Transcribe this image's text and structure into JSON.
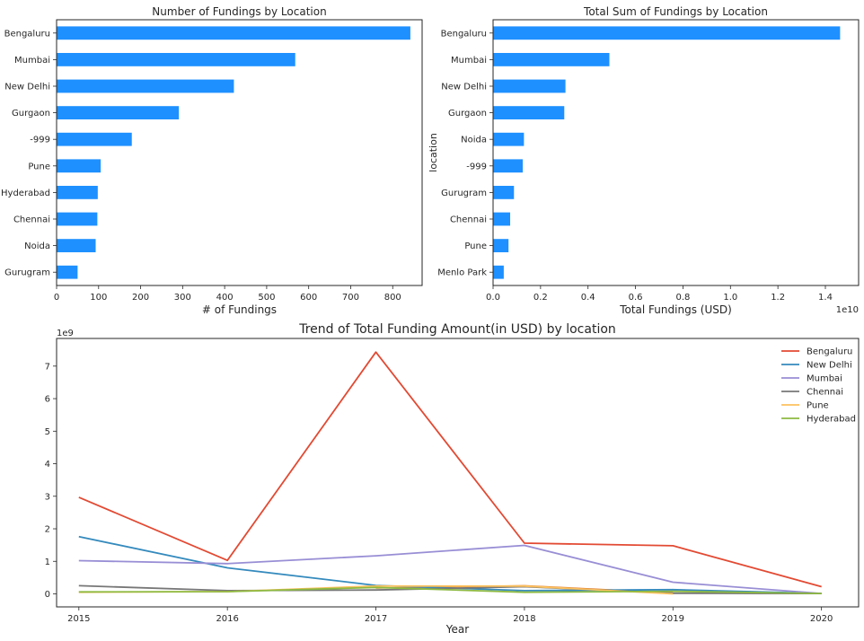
{
  "chart_data": [
    {
      "type": "bar",
      "orientation": "horizontal",
      "title": "Number of Fundings by Location",
      "xlabel": "# of Fundings",
      "ylabel": "",
      "xlim": [
        0,
        870
      ],
      "xticks": [
        0,
        100,
        200,
        300,
        400,
        500,
        600,
        700,
        800
      ],
      "categories": [
        "Bengaluru",
        "Mumbai",
        "New Delhi",
        "Gurgaon",
        "-999",
        "Pune",
        "Hyderabad",
        "Chennai",
        "Noida",
        "Gurugram"
      ],
      "values": [
        842,
        568,
        422,
        291,
        179,
        105,
        98,
        97,
        93,
        50
      ],
      "color": "#1e90ff"
    },
    {
      "type": "bar",
      "orientation": "horizontal",
      "title": "Total Sum of Fundings by Location",
      "xlabel": "Total Fundings (USD)",
      "ylabel": "location",
      "xlim": [
        0,
        1.54
      ],
      "xticks": [
        0.0,
        0.2,
        0.4,
        0.6,
        0.8,
        1.0,
        1.2,
        1.4
      ],
      "xtick_labels": [
        "0.0",
        "0.2",
        "0.4",
        "0.6",
        "0.8",
        "1.0",
        "1.2",
        "1.4"
      ],
      "scale_label": "1e10",
      "categories": [
        "Bengaluru",
        "Mumbai",
        "New Delhi",
        "Gurgaon",
        "Noida",
        "-999",
        "Gurugram",
        "Chennai",
        "Pune",
        "Menlo Park"
      ],
      "values": [
        1.462,
        0.49,
        0.305,
        0.3,
        0.13,
        0.125,
        0.088,
        0.072,
        0.065,
        0.045
      ],
      "color": "#1e90ff"
    },
    {
      "type": "line",
      "title": "Trend of Total Funding Amount(in USD) by location",
      "xlabel": "Year",
      "ylabel": "",
      "scale_label": "1e9",
      "x": [
        2015,
        2016,
        2017,
        2018,
        2019,
        2020
      ],
      "xlim": [
        2014.85,
        2020.25
      ],
      "ylim": [
        -0.4,
        7.85
      ],
      "yticks": [
        0,
        1,
        2,
        3,
        4,
        5,
        6,
        7
      ],
      "legend_position": "top-right",
      "series": [
        {
          "name": "Bengaluru",
          "color": "#e24a33",
          "values": [
            2.97,
            1.03,
            7.43,
            1.56,
            1.48,
            0.22
          ]
        },
        {
          "name": "New Delhi",
          "color": "#348abd",
          "values": [
            1.76,
            0.8,
            0.26,
            0.1,
            0.13,
            0.01
          ]
        },
        {
          "name": "Mumbai",
          "color": "#988ed5",
          "values": [
            1.02,
            0.93,
            1.17,
            1.49,
            0.36,
            0.01
          ]
        },
        {
          "name": "Chennai",
          "color": "#777777",
          "values": [
            0.25,
            0.1,
            0.12,
            0.22,
            0.02,
            0.01
          ]
        },
        {
          "name": "Pune",
          "color": "#fbc15e",
          "values": [
            0.05,
            0.07,
            0.24,
            0.24,
            0.0,
            null
          ]
        },
        {
          "name": "Hyderabad",
          "color": "#8eba42",
          "values": [
            0.06,
            0.07,
            0.2,
            0.05,
            0.08,
            0.01
          ]
        }
      ],
      "extra_segments": [
        {
          "color": "#e07a2a",
          "points": [
            [
              2017,
              0.18
            ],
            [
              2018,
              0.25
            ],
            [
              2019,
              0.03
            ]
          ]
        }
      ]
    }
  ]
}
